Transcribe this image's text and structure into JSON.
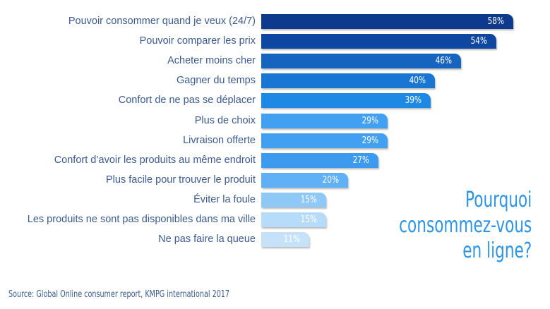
{
  "chart_data": {
    "type": "bar",
    "orientation": "horizontal",
    "title": "Pourquoi consommez-vous en ligne?",
    "title_lines": [
      "Pourquoi",
      "consommez-vous",
      "en ligne?"
    ],
    "xlabel": "",
    "ylabel": "",
    "xlim": [
      0,
      60
    ],
    "grid": false,
    "legend": "none",
    "value_suffix": "%",
    "categories": [
      "Pouvoir consommer quand je veux (24/7)",
      "Pouvoir comparer les prix",
      "Acheter moins cher",
      "Gagner du temps",
      "Confort de ne pas se déplacer",
      "Plus de choix",
      "Livraison offerte",
      "Confort d’avoir les produits au même endroit",
      "Plus facile pour trouver le produit",
      "Éviter la foule",
      "Les produits ne sont pas disponibles dans ma ville",
      "Ne pas faire la queue"
    ],
    "values": [
      58,
      54,
      46,
      40,
      39,
      29,
      29,
      27,
      20,
      15,
      15,
      11
    ],
    "value_labels": [
      "58%",
      "54%",
      "46%",
      "40%",
      "39%",
      "29%",
      "29%",
      "27%",
      "20%",
      "15%",
      "15%",
      "11%"
    ],
    "colors": [
      "#0d3a8c",
      "#0e47a1",
      "#1565c0",
      "#1976d2",
      "#1e88e5",
      "#42a0f2",
      "#42a0f2",
      "#3d9bef",
      "#5fb0f4",
      "#8ec8f7",
      "#b7dcfa",
      "#c5e2fa"
    ]
  },
  "source": "Source: Global Online consumer report, KMPG international 2017",
  "colors": {
    "label_text": "#3a5a96",
    "title_text": "#2b95e9",
    "value_text": "#ffffff"
  }
}
